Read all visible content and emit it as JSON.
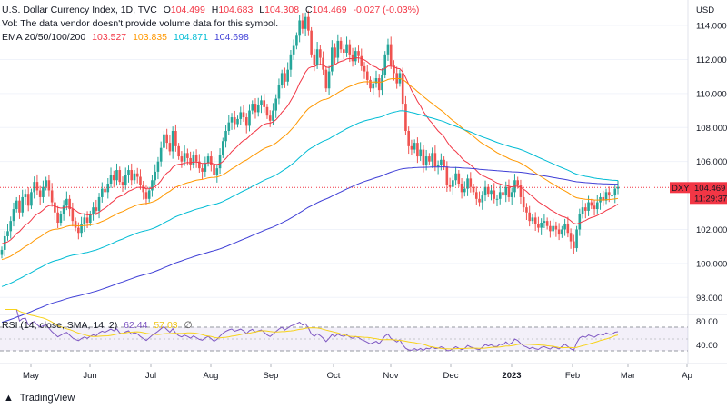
{
  "header": {
    "title": "U.S. Dollar Currency Index, 1D, TVC",
    "ohlc": {
      "o_label": "O",
      "o": "104.499",
      "h_label": "H",
      "h": "104.683",
      "l_label": "L",
      "l": "104.308",
      "c_label": "C",
      "c": "104.469",
      "change": "-0.027 (-0.03%)"
    },
    "vol_note": "Vol: The data vendor doesn't provide volume data for this symbol.",
    "ema_label": "EMA 20/50/100/200",
    "ema_values": [
      "103.527",
      "103.835",
      "104.871",
      "104.698"
    ]
  },
  "price_axis": {
    "currency": "USD",
    "ticks": [
      "114.000",
      "112.000",
      "110.000",
      "108.000",
      "106.000",
      "102.000",
      "100.000",
      "98.000"
    ],
    "symbol_badge": "DXY",
    "price_badge": "104.469",
    "countdown": "11:29:37"
  },
  "rsi": {
    "label": "RSI (14, close, SMA, 14, 2)",
    "rsi_value": "62.44",
    "sma_value": "57.03",
    "extra_icon": "∅",
    "ticks": [
      "80.00",
      "40.00"
    ]
  },
  "time_axis": [
    "May",
    "Jun",
    "Jul",
    "Aug",
    "Sep",
    "Oct",
    "Nov",
    "Dec",
    "2023",
    "Feb",
    "Mar",
    "Ap"
  ],
  "branding": {
    "name": "TradingView"
  },
  "colors": {
    "up": "#26a69a",
    "down": "#ef5350",
    "ema20": "#f23645",
    "ema50": "#ff9800",
    "ema100": "#00bcd4",
    "ema200": "#3f3fd6",
    "rsi": "#7e57c2",
    "rsi_sma": "#f7d21a",
    "badge": "#f23645"
  },
  "chart_data": {
    "type": "candlestick",
    "symbol": "DXY",
    "ylim": [
      97,
      115.5
    ],
    "closes": [
      100.8,
      101.6,
      101.9,
      102.5,
      103.2,
      103.7,
      103.0,
      103.9,
      104.1,
      103.4,
      104.2,
      104.8,
      104.3,
      103.9,
      104.5,
      104.9,
      104.3,
      103.6,
      103.0,
      102.4,
      102.9,
      103.4,
      103.8,
      103.2,
      102.5,
      102.1,
      101.8,
      102.3,
      102.7,
      102.4,
      102.9,
      103.3,
      103.1,
      103.9,
      104.4,
      104.2,
      104.7,
      105.2,
      104.9,
      105.5,
      104.8,
      104.6,
      105.2,
      105.5,
      104.9,
      105.3,
      105.1,
      104.6,
      104.2,
      103.8,
      104.3,
      104.9,
      105.4,
      106.0,
      106.8,
      107.6,
      107.1,
      106.6,
      107.8,
      106.9,
      106.3,
      106.0,
      106.5,
      106.2,
      105.8,
      106.4,
      106.0,
      105.6,
      105.4,
      105.9,
      106.3,
      105.8,
      105.2,
      105.6,
      106.4,
      107.2,
      107.8,
      108.3,
      108.6,
      108.2,
      108.5,
      108.9,
      108.6,
      108.1,
      109.0,
      109.4,
      108.9,
      109.3,
      109.6,
      109.2,
      108.7,
      108.4,
      109.0,
      109.7,
      110.5,
      111.2,
      110.7,
      111.4,
      112.3,
      112.8,
      113.4,
      114.3,
      113.8,
      114.5,
      113.7,
      112.3,
      111.7,
      112.6,
      112.1,
      111.4,
      110.3,
      111.3,
      112.7,
      112.1,
      113.1,
      112.6,
      112.4,
      112.9,
      112.3,
      111.9,
      112.5,
      112.2,
      111.6,
      111.3,
      110.8,
      110.3,
      110.6,
      110.9,
      110.2,
      111.1,
      112.3,
      112.9,
      111.7,
      111.2,
      110.6,
      111.2,
      109.4,
      107.8,
      106.9,
      106.7,
      107.1,
      106.3,
      106.7,
      105.8,
      106.3,
      106.0,
      106.5,
      105.7,
      105.8,
      106.1,
      105.7,
      104.6,
      104.5,
      104.9,
      105.3,
      104.7,
      104.2,
      104.4,
      105.0,
      104.5,
      104.2,
      103.8,
      103.6,
      104.0,
      104.5,
      104.1,
      104.3,
      103.8,
      103.8,
      104.2,
      104.0,
      104.5,
      103.9,
      104.2,
      104.9,
      104.6,
      103.9,
      103.3,
      103.0,
      102.5,
      102.7,
      102.3,
      102.1,
      102.4,
      102.5,
      102.2,
      101.9,
      102.2,
      102.0,
      101.7,
      102.0,
      102.3,
      101.8,
      101.3,
      100.9,
      102.0,
      102.9,
      103.3,
      103.1,
      103.6,
      103.4,
      103.2,
      103.6,
      103.9,
      103.7,
      104.2,
      104.0,
      104.0,
      104.4,
      104.5
    ]
  }
}
